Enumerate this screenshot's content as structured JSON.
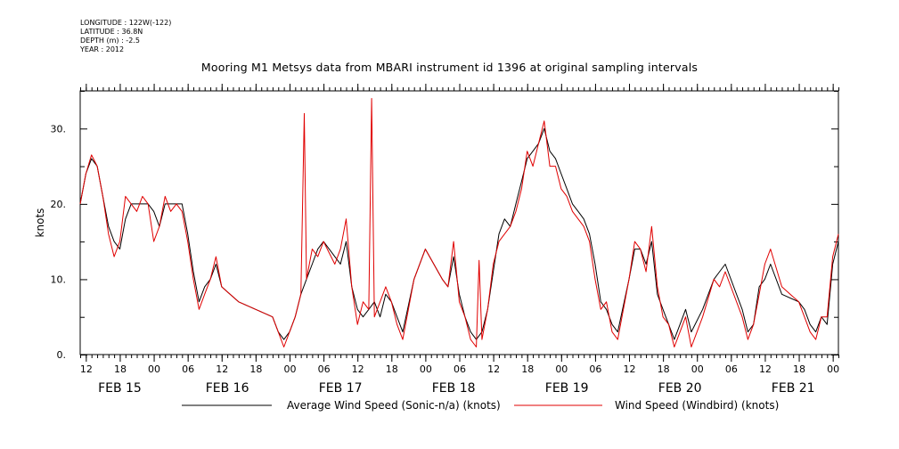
{
  "meta": {
    "longitude": "LONGITUDE : 122W(-122)",
    "latitude": "LATITUDE : 36.8N",
    "depth": "DEPTH (m) : -2.5",
    "year": "YEAR : 2012"
  },
  "chart_data": {
    "type": "line",
    "title": "Mooring M1 Metsys data from MBARI instrument id 1396 at original sampling intervals",
    "ylabel": "knots",
    "xlabel": "",
    "ylim": [
      0,
      35
    ],
    "yticks": [
      0,
      10,
      20,
      30
    ],
    "ytick_labels": [
      "0.",
      "10.",
      "20.",
      "30."
    ],
    "xlim_hours": [
      -1,
      133
    ],
    "x_hour_ticks": [
      0,
      6,
      12,
      18,
      24,
      30,
      36,
      42,
      48,
      54,
      60,
      66,
      72,
      78,
      84,
      90,
      96,
      102,
      108,
      114,
      120,
      126,
      132
    ],
    "x_hour_labels": [
      "12",
      "18",
      "00",
      "06",
      "12",
      "18",
      "00",
      "06",
      "12",
      "18",
      "00",
      "06",
      "12",
      "18",
      "00",
      "06",
      "12",
      "18",
      "00",
      "06",
      "12",
      "18",
      "00"
    ],
    "date_labels": [
      {
        "text": "FEB 15",
        "hour": 6
      },
      {
        "text": "FEB 16",
        "hour": 25
      },
      {
        "text": "FEB 17",
        "hour": 45
      },
      {
        "text": "FEB 18",
        "hour": 65
      },
      {
        "text": "FEB 19",
        "hour": 85
      },
      {
        "text": "FEB 20",
        "hour": 105
      },
      {
        "text": "FEB 21",
        "hour": 125
      }
    ],
    "grid": false,
    "legend": "bottom",
    "series": [
      {
        "name": "Average Wind Speed (Sonic-n/a) (knots)",
        "color": "#000000",
        "points": [
          [
            -1,
            20
          ],
          [
            0,
            24
          ],
          [
            1,
            26
          ],
          [
            2,
            25
          ],
          [
            3,
            21
          ],
          [
            4,
            17
          ],
          [
            5,
            15
          ],
          [
            6,
            14
          ],
          [
            7,
            18
          ],
          [
            8,
            20
          ],
          [
            9,
            20
          ],
          [
            10,
            20
          ],
          [
            11,
            20
          ],
          [
            12,
            19
          ],
          [
            13,
            17
          ],
          [
            14,
            20
          ],
          [
            15,
            20
          ],
          [
            16,
            20
          ],
          [
            17,
            20
          ],
          [
            18,
            16
          ],
          [
            19,
            11
          ],
          [
            20,
            7
          ],
          [
            21,
            9
          ],
          [
            22,
            10
          ],
          [
            23,
            12
          ],
          [
            24,
            9
          ],
          [
            27,
            7
          ],
          [
            33,
            5
          ],
          [
            34,
            3
          ],
          [
            35,
            2
          ],
          [
            36,
            3
          ],
          [
            37,
            5
          ],
          [
            38,
            8
          ],
          [
            39,
            10
          ],
          [
            40,
            12
          ],
          [
            41,
            14
          ],
          [
            42,
            15
          ],
          [
            44,
            13
          ],
          [
            45,
            12
          ],
          [
            46,
            15
          ],
          [
            47,
            9
          ],
          [
            48,
            6
          ],
          [
            49,
            5
          ],
          [
            50,
            6
          ],
          [
            51,
            7
          ],
          [
            52,
            5
          ],
          [
            53,
            8
          ],
          [
            54,
            7
          ],
          [
            55,
            5
          ],
          [
            56,
            3
          ],
          [
            58,
            10
          ],
          [
            60,
            14
          ],
          [
            63,
            10
          ],
          [
            64,
            9
          ],
          [
            65,
            13
          ],
          [
            66,
            8
          ],
          [
            67,
            5
          ],
          [
            68,
            3
          ],
          [
            69,
            2
          ],
          [
            70,
            3
          ],
          [
            71,
            6
          ],
          [
            72,
            11
          ],
          [
            73,
            16
          ],
          [
            74,
            18
          ],
          [
            75,
            17
          ],
          [
            76,
            20
          ],
          [
            77,
            23
          ],
          [
            78,
            26
          ],
          [
            79,
            27
          ],
          [
            80,
            28
          ],
          [
            81,
            30
          ],
          [
            82,
            27
          ],
          [
            83,
            26
          ],
          [
            84,
            24
          ],
          [
            85,
            22
          ],
          [
            86,
            20
          ],
          [
            87,
            19
          ],
          [
            88,
            18
          ],
          [
            89,
            16
          ],
          [
            90,
            12
          ],
          [
            91,
            7
          ],
          [
            92,
            6
          ],
          [
            93,
            4
          ],
          [
            94,
            3
          ],
          [
            96,
            10
          ],
          [
            97,
            14
          ],
          [
            98,
            14
          ],
          [
            99,
            12
          ],
          [
            100,
            15
          ],
          [
            101,
            8
          ],
          [
            102,
            6
          ],
          [
            103,
            4
          ],
          [
            104,
            2
          ],
          [
            105,
            4
          ],
          [
            106,
            6
          ],
          [
            107,
            3
          ],
          [
            109,
            6
          ],
          [
            111,
            10
          ],
          [
            112,
            11
          ],
          [
            113,
            12
          ],
          [
            116,
            6
          ],
          [
            117,
            3
          ],
          [
            118,
            4
          ],
          [
            119,
            9
          ],
          [
            120,
            10
          ],
          [
            121,
            12
          ],
          [
            123,
            8
          ],
          [
            126,
            7
          ],
          [
            127,
            6
          ],
          [
            128,
            4
          ],
          [
            129,
            3
          ],
          [
            130,
            5
          ],
          [
            131,
            4
          ],
          [
            132,
            12
          ],
          [
            133,
            15
          ]
        ]
      },
      {
        "name": "Wind Speed (Windbird) (knots)",
        "color": "#e00000",
        "points": [
          [
            -1,
            20
          ],
          [
            0,
            24
          ],
          [
            1,
            26.5
          ],
          [
            2,
            25
          ],
          [
            3,
            21
          ],
          [
            4,
            16
          ],
          [
            5,
            13
          ],
          [
            6,
            15
          ],
          [
            7,
            21
          ],
          [
            8,
            20
          ],
          [
            9,
            19
          ],
          [
            10,
            21
          ],
          [
            11,
            20
          ],
          [
            12,
            15
          ],
          [
            13,
            17
          ],
          [
            14,
            21
          ],
          [
            15,
            19
          ],
          [
            16,
            20
          ],
          [
            17,
            19
          ],
          [
            18,
            15
          ],
          [
            19,
            10
          ],
          [
            20,
            6
          ],
          [
            21,
            8
          ],
          [
            22,
            10
          ],
          [
            23,
            13
          ],
          [
            24,
            9
          ],
          [
            27,
            7
          ],
          [
            33,
            5
          ],
          [
            34,
            3
          ],
          [
            35,
            1
          ],
          [
            36,
            3
          ],
          [
            37,
            5
          ],
          [
            38,
            8
          ],
          [
            38.6,
            32
          ],
          [
            39,
            10
          ],
          [
            40,
            14
          ],
          [
            41,
            13
          ],
          [
            42,
            15
          ],
          [
            44,
            12
          ],
          [
            45,
            14
          ],
          [
            46,
            18
          ],
          [
            47,
            9
          ],
          [
            48,
            4
          ],
          [
            49,
            7
          ],
          [
            50,
            6
          ],
          [
            50.5,
            34
          ],
          [
            51,
            5
          ],
          [
            52,
            7
          ],
          [
            53,
            9
          ],
          [
            54,
            7
          ],
          [
            55,
            4
          ],
          [
            56,
            2
          ],
          [
            58,
            10
          ],
          [
            60,
            14
          ],
          [
            63,
            10
          ],
          [
            64,
            9
          ],
          [
            65,
            15
          ],
          [
            66,
            7
          ],
          [
            67,
            5
          ],
          [
            68,
            2
          ],
          [
            69,
            1
          ],
          [
            69.5,
            12.5
          ],
          [
            70,
            2
          ],
          [
            71,
            6
          ],
          [
            72,
            12
          ],
          [
            73,
            15
          ],
          [
            74,
            16
          ],
          [
            75,
            17
          ],
          [
            76,
            19
          ],
          [
            77,
            22
          ],
          [
            78,
            27
          ],
          [
            79,
            25
          ],
          [
            80,
            28
          ],
          [
            81,
            31
          ],
          [
            82,
            25
          ],
          [
            83,
            25
          ],
          [
            84,
            22
          ],
          [
            85,
            21
          ],
          [
            86,
            19
          ],
          [
            87,
            18
          ],
          [
            88,
            17
          ],
          [
            89,
            15
          ],
          [
            90,
            10
          ],
          [
            91,
            6
          ],
          [
            92,
            7
          ],
          [
            93,
            3
          ],
          [
            94,
            2
          ],
          [
            96,
            10
          ],
          [
            97,
            15
          ],
          [
            98,
            14
          ],
          [
            99,
            11
          ],
          [
            100,
            17
          ],
          [
            101,
            9
          ],
          [
            102,
            5
          ],
          [
            103,
            4
          ],
          [
            104,
            1
          ],
          [
            105,
            3
          ],
          [
            106,
            5
          ],
          [
            107,
            1
          ],
          [
            109,
            5
          ],
          [
            111,
            10
          ],
          [
            112,
            9
          ],
          [
            113,
            11
          ],
          [
            116,
            5
          ],
          [
            117,
            2
          ],
          [
            118,
            4
          ],
          [
            119,
            8
          ],
          [
            120,
            12
          ],
          [
            121,
            14
          ],
          [
            123,
            9
          ],
          [
            126,
            7
          ],
          [
            127,
            5
          ],
          [
            128,
            3
          ],
          [
            129,
            2
          ],
          [
            130,
            5
          ],
          [
            131,
            5
          ],
          [
            132,
            13
          ],
          [
            133,
            16
          ]
        ]
      }
    ]
  }
}
